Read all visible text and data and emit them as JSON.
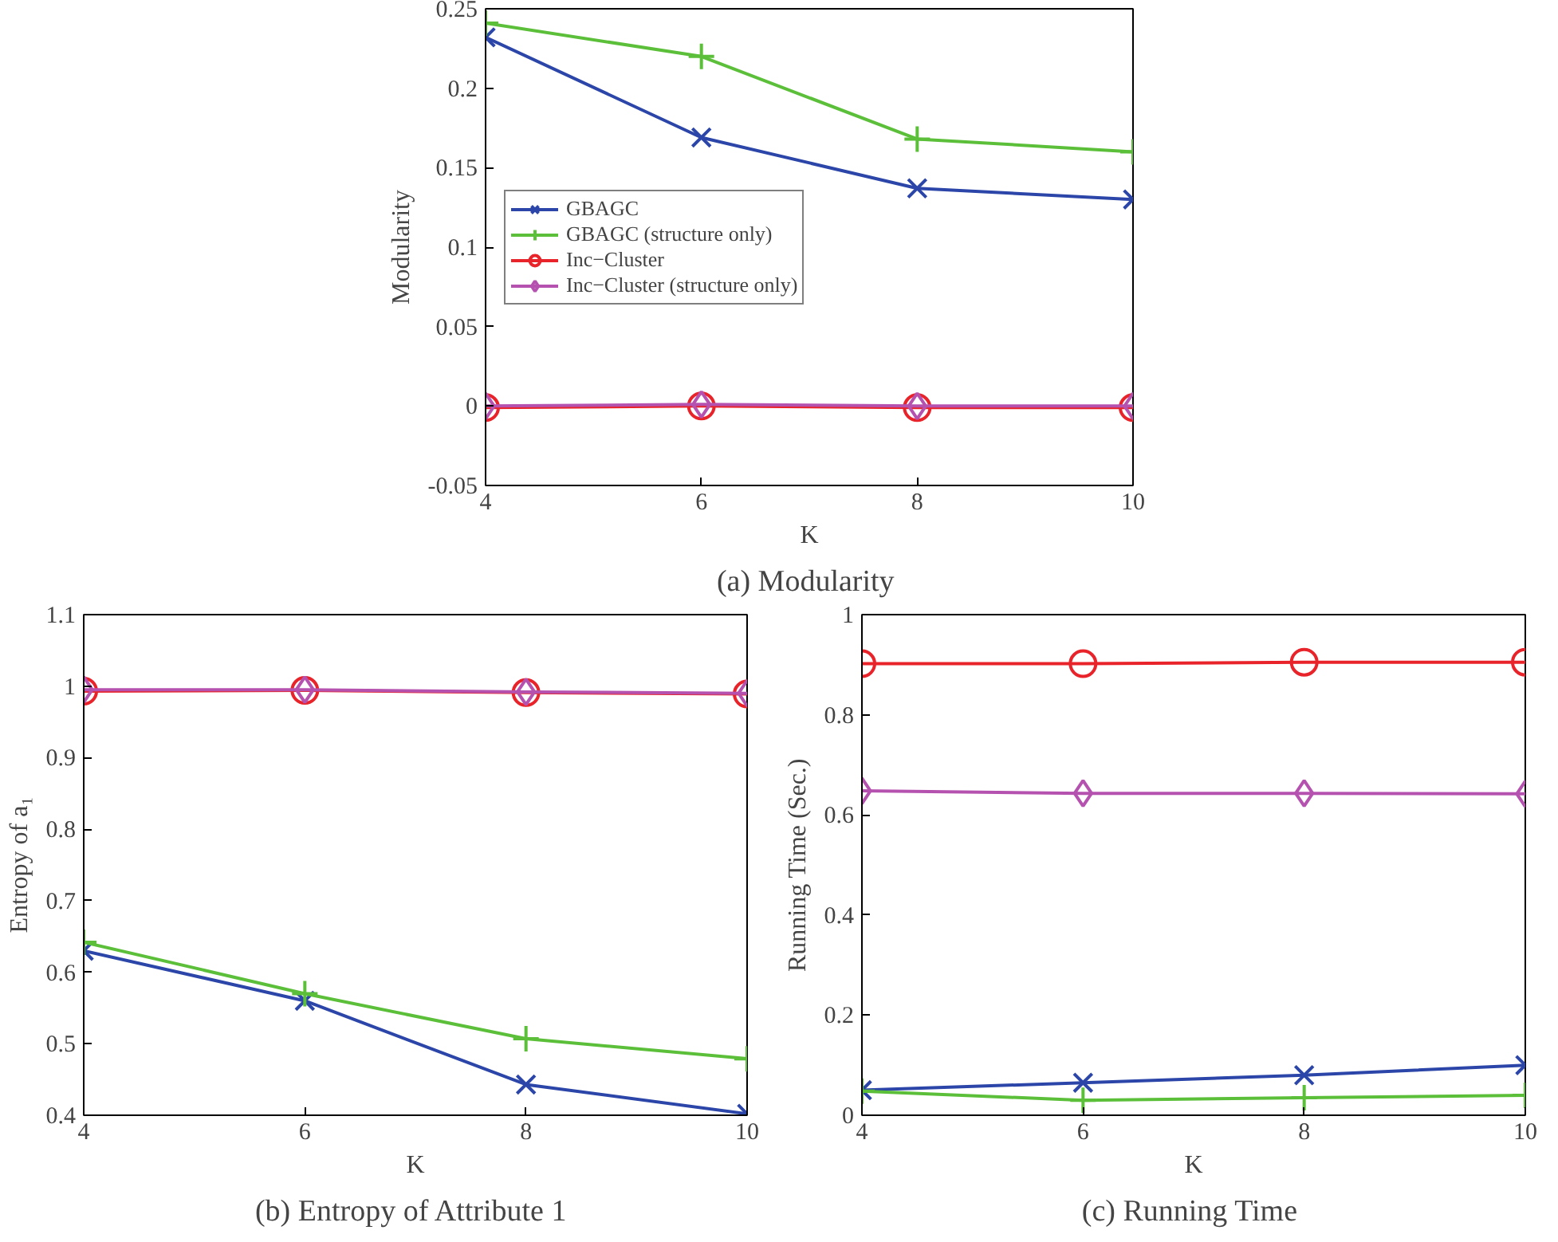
{
  "chart_data": [
    {
      "type": "line",
      "title": "(a)  Modularity",
      "xlabel": "K",
      "ylabel": "Modularity",
      "x": [
        4,
        6,
        8,
        10
      ],
      "xlim": [
        4,
        10
      ],
      "xticks": [
        4,
        6,
        8,
        10
      ],
      "ylim": [
        -0.05,
        0.25
      ],
      "yticks": [
        -0.05,
        0,
        0.05,
        0.1,
        0.15,
        0.2,
        0.25
      ],
      "grid": false,
      "legend": "center left",
      "series": [
        {
          "name": "GBAGC",
          "color": "#2b46a8",
          "marker": "x",
          "values": [
            0.232,
            0.169,
            0.137,
            0.13
          ]
        },
        {
          "name": "GBAGC (structure only)",
          "color": "#5cbf3a",
          "marker": "cross",
          "values": [
            0.241,
            0.22,
            0.168,
            0.16
          ]
        },
        {
          "name": "Inc−Cluster",
          "color": "#e8232a",
          "marker": "circle",
          "values": [
            -0.001,
            0.0,
            -0.001,
            -0.001
          ]
        },
        {
          "name": "Inc−Cluster (structure only)",
          "color": "#b552b0",
          "marker": "diamond",
          "values": [
            0.0,
            0.001,
            0.0,
            0.0
          ]
        }
      ]
    },
    {
      "type": "line",
      "title": "(b)  Entropy of Attribute 1",
      "xlabel": "K",
      "ylabel": "Entropy of a₁",
      "x": [
        4,
        6,
        8,
        10
      ],
      "xlim": [
        4,
        10
      ],
      "xticks": [
        4,
        6,
        8,
        10
      ],
      "ylim": [
        0.4,
        1.1
      ],
      "yticks": [
        0.4,
        0.5,
        0.6,
        0.7,
        0.8,
        0.9,
        1.0,
        1.1
      ],
      "grid": false,
      "legend": false,
      "series": [
        {
          "color": "#2b46a8",
          "marker": "x",
          "values": [
            0.63,
            0.56,
            0.443,
            0.402
          ]
        },
        {
          "color": "#5cbf3a",
          "marker": "cross",
          "values": [
            0.642,
            0.57,
            0.507,
            0.479
          ]
        },
        {
          "color": "#e8232a",
          "marker": "circle",
          "values": [
            0.993,
            0.994,
            0.991,
            0.989
          ]
        },
        {
          "color": "#b552b0",
          "marker": "diamond",
          "values": [
            0.995,
            0.995,
            0.992,
            0.99
          ]
        }
      ]
    },
    {
      "type": "line",
      "title": "(c)  Running Time",
      "xlabel": "K",
      "ylabel": "Running Time (Sec.)",
      "x": [
        4,
        6,
        8,
        10
      ],
      "xlim": [
        4,
        10
      ],
      "xticks": [
        4,
        6,
        8,
        10
      ],
      "ylim": [
        0,
        1
      ],
      "yticks": [
        0,
        0.2,
        0.4,
        0.6,
        0.8,
        1
      ],
      "grid": false,
      "legend": false,
      "series": [
        {
          "color": "#2b46a8",
          "marker": "x",
          "values": [
            0.05,
            0.065,
            0.08,
            0.1
          ]
        },
        {
          "color": "#5cbf3a",
          "marker": "cross",
          "values": [
            0.048,
            0.03,
            0.035,
            0.04
          ]
        },
        {
          "color": "#e8232a",
          "marker": "circle",
          "values": [
            0.902,
            0.902,
            0.905,
            0.905
          ]
        },
        {
          "color": "#b552b0",
          "marker": "diamond",
          "values": [
            0.648,
            0.643,
            0.643,
            0.642
          ]
        }
      ]
    }
  ]
}
